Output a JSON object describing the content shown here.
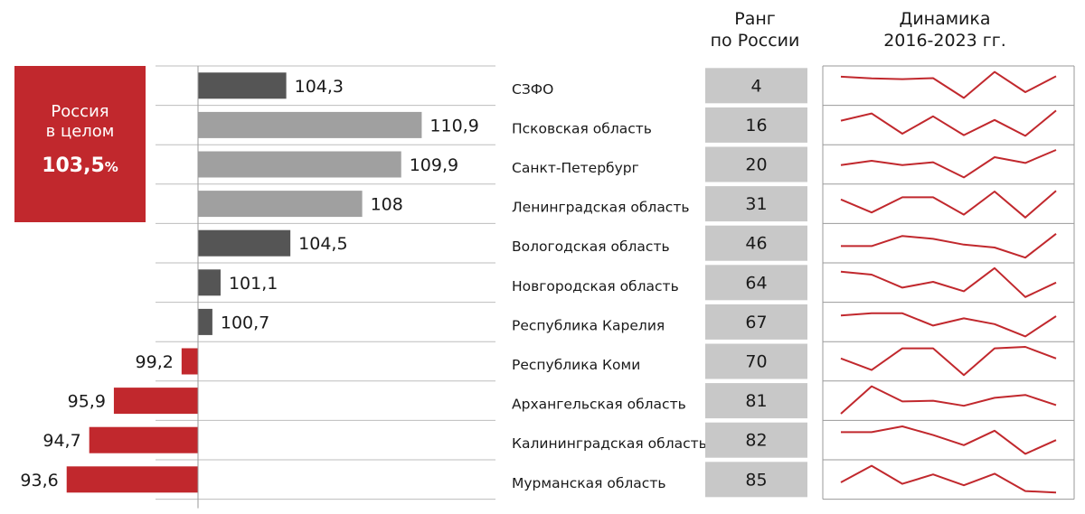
{
  "russia": {
    "label_line1": "Россия",
    "label_line2": "в целом",
    "value": "103,5",
    "unit": "%"
  },
  "headers": {
    "rank": [
      "Ранг",
      "по России"
    ],
    "dynamics": [
      "Динамика",
      "2016-2023 гг."
    ]
  },
  "colors": {
    "red": "#c1282d",
    "dark": "#555555",
    "light": "#a0a0a0",
    "rank_bg": "#c8c8c8"
  },
  "chart_data": {
    "type": "bar",
    "orientation": "horizontal",
    "baseline": 100,
    "categories": [
      "СЗФО",
      "Псковская область",
      "Санкт-Петербург",
      "Ленинградская область",
      "Вологодская область",
      "Новгородская область",
      "Республика Карелия",
      "Республика Коми",
      "Архангельская область",
      "Калининградская область",
      "Мурманская область"
    ],
    "values": [
      104.3,
      110.9,
      109.9,
      108,
      104.5,
      101.1,
      100.7,
      99.2,
      95.9,
      94.7,
      93.6
    ],
    "value_labels": [
      "104,3",
      "110,9",
      "109,9",
      "108",
      "104,5",
      "101,1",
      "100,7",
      "99,2",
      "95,9",
      "94,7",
      "93,6"
    ],
    "bar_colors": [
      "dark",
      "light",
      "light",
      "light",
      "dark",
      "dark",
      "dark",
      "red",
      "red",
      "red",
      "red"
    ],
    "ranks": [
      "4",
      "16",
      "20",
      "31",
      "46",
      "64",
      "67",
      "70",
      "81",
      "82",
      "85"
    ],
    "sparklines": {
      "years": [
        2016,
        2017,
        2018,
        2019,
        2020,
        2021,
        2022,
        2023
      ],
      "series": [
        [
          0.62,
          0.5,
          0.45,
          0.52,
          -0.85,
          0.95,
          -0.45,
          0.65
        ],
        [
          0.3,
          0.8,
          -0.6,
          0.6,
          -0.7,
          0.35,
          -0.75,
          1.0
        ],
        [
          -0.05,
          0.25,
          -0.05,
          0.15,
          -0.9,
          0.5,
          0.1,
          1.0
        ],
        [
          0.3,
          -0.6,
          0.45,
          0.45,
          -0.75,
          0.85,
          -0.95,
          0.9
        ],
        [
          -0.2,
          -0.2,
          0.5,
          0.3,
          -0.1,
          -0.3,
          -1.0,
          0.65
        ],
        [
          0.75,
          0.55,
          -0.35,
          0.05,
          -0.6,
          1.0,
          -1.0,
          0.0
        ],
        [
          0.45,
          0.6,
          0.6,
          -0.25,
          0.25,
          -0.15,
          -1.0,
          0.4
        ],
        [
          0.2,
          -0.6,
          0.9,
          0.9,
          -0.95,
          0.9,
          1.0,
          0.2
        ],
        [
          -0.9,
          1.0,
          -0.05,
          0.0,
          -0.35,
          0.2,
          0.4,
          -0.3
        ],
        [
          0.55,
          0.55,
          0.95,
          0.35,
          -0.35,
          0.65,
          -0.95,
          0.0
        ],
        [
          -0.2,
          0.95,
          -0.3,
          0.35,
          -0.4,
          0.4,
          -0.8,
          -0.9
        ]
      ]
    }
  }
}
